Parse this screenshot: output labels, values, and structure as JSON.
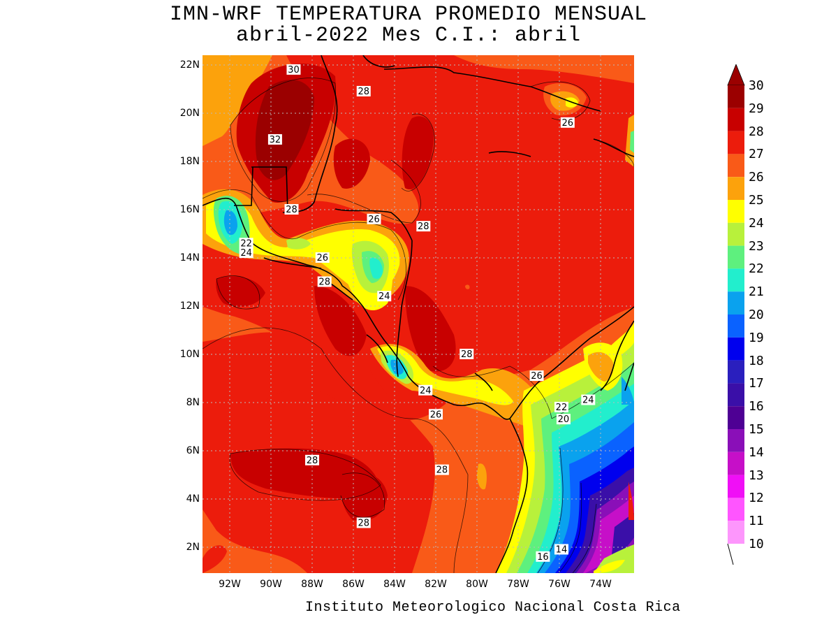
{
  "title_line1": "IMN-WRF  TEMPERATURA PROMEDIO MENSUAL",
  "title_line2": "abril-2022 Mes C.I.: abril",
  "credit": "Instituto Meteorologico Nacional Costa Rica",
  "map": {
    "lat_labels": [
      "22N",
      "20N",
      "18N",
      "16N",
      "14N",
      "12N",
      "10N",
      "8N",
      "6N",
      "4N",
      "2N"
    ],
    "lon_labels": [
      "92W",
      "90W",
      "88W",
      "86W",
      "84W",
      "82W",
      "80W",
      "78W",
      "76W",
      "74W"
    ],
    "contour_labels": [
      {
        "text": "30",
        "lon": -88.9,
        "lat": 21.8
      },
      {
        "text": "28",
        "lon": -85.5,
        "lat": 20.9
      },
      {
        "text": "32",
        "lon": -89.8,
        "lat": 18.9
      },
      {
        "text": "26",
        "lon": -75.6,
        "lat": 19.6
      },
      {
        "text": "28",
        "lon": -89.0,
        "lat": 16.0
      },
      {
        "text": "26",
        "lon": -85.0,
        "lat": 15.6
      },
      {
        "text": "28",
        "lon": -82.6,
        "lat": 15.3
      },
      {
        "text": "22",
        "lon": -91.2,
        "lat": 14.6
      },
      {
        "text": "24",
        "lon": -91.2,
        "lat": 14.2
      },
      {
        "text": "26",
        "lon": -87.5,
        "lat": 14.0
      },
      {
        "text": "28",
        "lon": -87.4,
        "lat": 13.0
      },
      {
        "text": "24",
        "lon": -84.5,
        "lat": 12.4
      },
      {
        "text": "28",
        "lon": -80.5,
        "lat": 10.0
      },
      {
        "text": "26",
        "lon": -77.1,
        "lat": 9.1
      },
      {
        "text": "24",
        "lon": -82.5,
        "lat": 8.5
      },
      {
        "text": "26",
        "lon": -82.0,
        "lat": 7.5
      },
      {
        "text": "22",
        "lon": -75.9,
        "lat": 7.8
      },
      {
        "text": "24",
        "lon": -74.6,
        "lat": 8.1
      },
      {
        "text": "20",
        "lon": -75.8,
        "lat": 7.3
      },
      {
        "text": "28",
        "lon": -88.0,
        "lat": 5.6
      },
      {
        "text": "28",
        "lon": -81.7,
        "lat": 5.2
      },
      {
        "text": "28",
        "lon": -85.5,
        "lat": 3.0
      },
      {
        "text": "14",
        "lon": -75.9,
        "lat": 1.9
      },
      {
        "text": "16",
        "lon": -76.8,
        "lat": 1.6
      }
    ]
  },
  "colorbar": {
    "labels": [
      "30",
      "29",
      "28",
      "27",
      "26",
      "25",
      "24",
      "23",
      "22",
      "21",
      "20",
      "19",
      "18",
      "17",
      "16",
      "15",
      "14",
      "13",
      "12",
      "11",
      "10"
    ],
    "colors": [
      "#9b0000",
      "#c80000",
      "#ec1c0c",
      "#f95a18",
      "#fca20c",
      "#ffff00",
      "#b8f13b",
      "#5ef07e",
      "#22eecd",
      "#0aa2ee",
      "#0a62ff",
      "#0000ee",
      "#2a1fbe",
      "#3a0fa8",
      "#4e0094",
      "#8a0fb8",
      "#c60fc8",
      "#f00ff6",
      "#ff55ff",
      "#fd96fc"
    ],
    "top_arrow_color": "#9b0000"
  }
}
